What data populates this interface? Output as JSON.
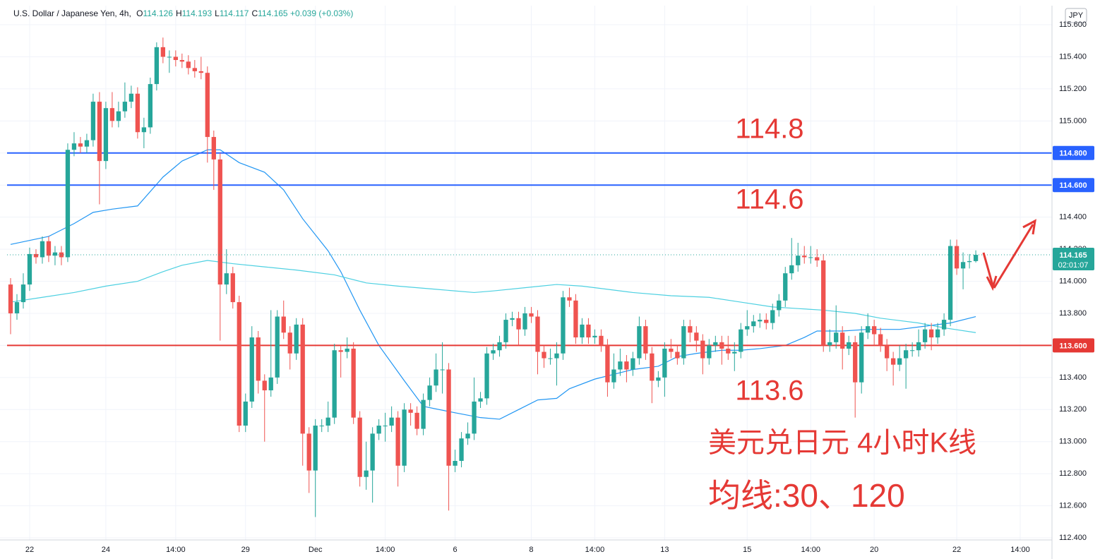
{
  "chart_data": {
    "type": "candlestick",
    "symbol": "U.S. Dollar / Japanese Yen, 4h,",
    "ohlc": [
      {
        "key": "O",
        "value": "114.126"
      },
      {
        "key": "H",
        "value": "114.193"
      },
      {
        "key": "L",
        "value": "114.117"
      },
      {
        "key": "C",
        "value": "114.165"
      }
    ],
    "change": "+0.039 (+0.03%)",
    "currency": "JPY",
    "up_color": "#26a69a",
    "down_color": "#ef5350",
    "open": [
      113.98,
      113.8,
      113.87,
      113.98,
      114.17,
      114.15,
      114.25,
      114.16,
      114.18,
      114.15,
      114.82,
      114.86,
      114.84,
      114.88,
      115.12,
      114.75,
      115.08,
      115.0,
      115.06,
      115.12,
      115.17,
      114.93,
      114.96,
      115.23,
      115.46,
      115.4,
      115.4,
      115.38,
      115.37,
      115.33,
      115.31,
      115.3,
      114.9,
      114.76,
      113.98,
      114.05,
      113.87,
      113.1,
      113.25,
      113.65,
      113.38,
      113.32,
      113.4,
      113.78,
      113.68,
      113.55,
      113.73,
      113.05,
      112.82,
      113.1,
      113.1,
      113.15,
      113.57,
      113.56,
      113.58,
      113.15,
      112.78,
      112.82,
      113.05,
      113.1,
      113.1,
      113.15,
      112.85,
      113.2,
      113.18,
      113.08,
      113.26,
      113.35,
      113.45,
      113.45,
      112.85,
      112.88,
      113.02,
      113.05,
      113.25,
      113.27,
      113.55,
      113.57,
      113.62,
      113.76,
      113.77,
      113.7,
      113.8,
      113.78,
      113.56,
      113.52,
      113.52,
      113.55,
      113.9,
      113.88,
      113.65,
      113.73,
      113.65,
      113.66,
      113.6,
      113.37,
      113.45,
      113.5,
      113.45,
      113.52,
      113.72,
      113.55,
      113.38,
      113.4,
      113.58,
      113.56,
      113.52,
      113.72,
      113.68,
      113.63,
      113.52,
      113.6,
      113.62,
      113.58,
      113.55,
      113.56,
      113.7,
      113.72,
      113.75,
      113.76,
      113.74,
      113.82,
      113.88,
      114.05,
      114.1,
      114.16,
      114.15,
      114.15,
      114.13,
      113.6,
      113.62,
      113.68,
      113.58,
      113.62,
      113.37,
      113.68,
      113.72,
      113.67,
      113.6,
      113.52,
      113.48,
      113.52,
      113.57,
      113.57,
      113.62,
      113.7,
      113.65,
      113.7,
      113.76,
      114.22,
      114.08,
      114.12,
      114.126
    ],
    "high": [
      114.02,
      113.92,
      114.05,
      114.21,
      114.2,
      114.28,
      114.28,
      114.22,
      114.22,
      114.86,
      114.93,
      114.9,
      114.92,
      115.17,
      115.18,
      115.12,
      115.18,
      115.12,
      115.24,
      115.22,
      115.21,
      115.02,
      115.27,
      115.49,
      115.52,
      115.44,
      115.44,
      115.42,
      115.41,
      115.38,
      115.4,
      115.34,
      114.94,
      114.8,
      114.2,
      114.09,
      113.91,
      113.3,
      113.72,
      113.69,
      113.42,
      113.82,
      113.82,
      113.88,
      113.72,
      113.77,
      113.77,
      113.09,
      113.14,
      113.14,
      113.25,
      113.61,
      113.6,
      113.65,
      113.62,
      113.19,
      113.0,
      113.09,
      113.14,
      113.18,
      113.22,
      113.19,
      113.24,
      113.24,
      113.22,
      113.3,
      113.4,
      113.55,
      113.62,
      113.49,
      112.95,
      113.06,
      113.12,
      113.4,
      113.31,
      113.59,
      113.61,
      113.66,
      113.8,
      113.81,
      113.81,
      113.84,
      113.84,
      113.82,
      113.6,
      113.58,
      113.62,
      113.94,
      113.96,
      113.92,
      113.77,
      113.77,
      113.7,
      113.7,
      113.64,
      113.55,
      113.58,
      113.54,
      113.56,
      113.78,
      113.76,
      113.59,
      113.44,
      113.62,
      113.64,
      113.6,
      113.76,
      113.76,
      113.72,
      113.67,
      113.64,
      113.66,
      113.66,
      113.66,
      113.62,
      113.74,
      113.82,
      113.79,
      113.8,
      113.8,
      113.86,
      113.92,
      114.09,
      114.27,
      114.24,
      114.22,
      114.22,
      114.2,
      114.17,
      113.7,
      113.85,
      113.72,
      113.66,
      113.66,
      113.72,
      113.8,
      113.76,
      113.71,
      113.64,
      113.56,
      113.6,
      113.61,
      113.62,
      113.7,
      113.74,
      113.74,
      113.74,
      113.8,
      114.26,
      114.26,
      114.18,
      114.17,
      114.193
    ],
    "low": [
      113.67,
      113.76,
      113.83,
      113.94,
      114.11,
      114.11,
      114.12,
      114.1,
      114.1,
      114.12,
      114.78,
      114.8,
      114.8,
      114.84,
      114.48,
      114.7,
      114.96,
      114.96,
      115.02,
      115.08,
      114.89,
      114.83,
      114.92,
      115.19,
      115.36,
      115.3,
      115.34,
      115.33,
      115.29,
      115.27,
      115.26,
      114.74,
      114.57,
      113.63,
      113.92,
      113.83,
      113.06,
      113.06,
      113.21,
      113.3,
      113.0,
      113.28,
      113.36,
      113.64,
      113.45,
      113.51,
      112.85,
      112.68,
      112.53,
      113.06,
      113.06,
      113.11,
      113.4,
      113.52,
      113.11,
      112.72,
      112.7,
      112.62,
      113.01,
      113.0,
      113.06,
      112.72,
      112.81,
      113.1,
      113.04,
      113.04,
      113.22,
      113.31,
      113.3,
      112.57,
      112.81,
      112.84,
      112.98,
      113.01,
      113.21,
      113.23,
      113.51,
      113.53,
      113.58,
      113.72,
      113.6,
      113.66,
      113.74,
      113.42,
      113.46,
      113.48,
      113.35,
      113.51,
      113.84,
      113.61,
      113.61,
      113.61,
      113.61,
      113.56,
      113.28,
      113.33,
      113.41,
      113.37,
      113.41,
      113.48,
      113.51,
      113.24,
      113.34,
      113.28,
      113.52,
      113.48,
      113.48,
      113.62,
      113.56,
      113.42,
      113.48,
      113.56,
      113.48,
      113.51,
      113.44,
      113.52,
      113.66,
      113.68,
      113.71,
      113.7,
      113.7,
      113.78,
      113.84,
      114.01,
      114.06,
      114.11,
      114.11,
      114.09,
      113.56,
      113.56,
      113.58,
      113.45,
      113.54,
      113.15,
      113.3,
      113.64,
      113.6,
      113.56,
      113.44,
      113.35,
      113.44,
      113.33,
      113.53,
      113.53,
      113.58,
      113.57,
      113.61,
      113.66,
      113.72,
      114.04,
      113.95,
      114.08,
      114.117
    ],
    "close": [
      113.8,
      113.87,
      113.98,
      114.17,
      114.15,
      114.25,
      114.16,
      114.18,
      114.15,
      114.82,
      114.86,
      114.84,
      114.88,
      115.12,
      114.75,
      115.08,
      115.0,
      115.06,
      115.12,
      115.17,
      114.93,
      114.96,
      115.23,
      115.46,
      115.4,
      115.4,
      115.38,
      115.37,
      115.33,
      115.31,
      115.3,
      114.9,
      114.76,
      113.98,
      114.05,
      113.87,
      113.1,
      113.25,
      113.65,
      113.38,
      113.32,
      113.4,
      113.78,
      113.68,
      113.55,
      113.73,
      113.05,
      112.82,
      113.1,
      113.1,
      113.15,
      113.57,
      113.56,
      113.58,
      113.15,
      112.78,
      112.82,
      113.05,
      113.1,
      113.1,
      113.15,
      112.85,
      113.2,
      113.18,
      113.08,
      113.26,
      113.35,
      113.45,
      113.45,
      112.85,
      112.88,
      113.02,
      113.05,
      113.25,
      113.27,
      113.55,
      113.57,
      113.62,
      113.76,
      113.77,
      113.7,
      113.8,
      113.78,
      113.56,
      113.52,
      113.52,
      113.55,
      113.9,
      113.88,
      113.65,
      113.73,
      113.65,
      113.66,
      113.6,
      113.37,
      113.45,
      113.5,
      113.45,
      113.52,
      113.72,
      113.55,
      113.38,
      113.4,
      113.58,
      113.56,
      113.52,
      113.72,
      113.68,
      113.63,
      113.52,
      113.6,
      113.62,
      113.58,
      113.55,
      113.56,
      113.7,
      113.72,
      113.75,
      113.76,
      113.74,
      113.82,
      113.88,
      114.05,
      114.1,
      114.16,
      114.15,
      114.15,
      114.13,
      113.6,
      113.62,
      113.68,
      113.58,
      113.62,
      113.37,
      113.68,
      113.72,
      113.67,
      113.6,
      113.52,
      113.48,
      113.52,
      113.57,
      113.57,
      113.62,
      113.7,
      113.65,
      113.7,
      113.76,
      114.22,
      114.08,
      114.12,
      114.126,
      114.165
    ],
    "moving_averages": [
      {
        "color": "#2196f3",
        "x": [
          0,
          6,
          7,
          10,
          13,
          16,
          20,
          24,
          27,
          31,
          33,
          36,
          40,
          43,
          46,
          50,
          52,
          55,
          58,
          62,
          65,
          70,
          74,
          77,
          80,
          83,
          86,
          88,
          92,
          95,
          98,
          102,
          105,
          108,
          112,
          115,
          118,
          122,
          125,
          127,
          131,
          135,
          140,
          144,
          148,
          152
        ],
        "values": [
          114.23,
          114.28,
          114.3,
          114.36,
          114.43,
          114.45,
          114.47,
          114.65,
          114.75,
          114.82,
          114.82,
          114.74,
          114.68,
          114.57,
          114.39,
          114.19,
          114.06,
          113.82,
          113.6,
          113.38,
          113.22,
          113.18,
          113.15,
          113.14,
          113.2,
          113.26,
          113.27,
          113.33,
          113.39,
          113.42,
          113.45,
          113.47,
          113.53,
          113.55,
          113.57,
          113.57,
          113.58,
          113.6,
          113.65,
          113.69,
          113.69,
          113.7,
          113.7,
          113.72,
          113.74,
          113.78
        ]
      },
      {
        "color": "#4dd0e1",
        "x": [
          0,
          5,
          10,
          15,
          20,
          24,
          27,
          31,
          35,
          40,
          45,
          51,
          56,
          61,
          67,
          73,
          76,
          81,
          86,
          90,
          94,
          98,
          104,
          110,
          115,
          120,
          124,
          128,
          133,
          137,
          143,
          147,
          152
        ],
        "values": [
          113.87,
          113.9,
          113.93,
          113.97,
          114.0,
          114.06,
          114.1,
          114.13,
          114.11,
          114.09,
          114.07,
          114.04,
          113.99,
          113.97,
          113.95,
          113.93,
          113.94,
          113.96,
          113.98,
          113.97,
          113.95,
          113.93,
          113.91,
          113.9,
          113.87,
          113.84,
          113.83,
          113.82,
          113.8,
          113.77,
          113.74,
          113.71,
          113.68
        ]
      }
    ],
    "levels": [
      {
        "value": 114.8,
        "label": "114.800",
        "color": "#2962ff"
      },
      {
        "value": 114.6,
        "label": "114.600",
        "color": "#2962ff"
      },
      {
        "value": 113.6,
        "label": "113.600",
        "color": "#e53935"
      }
    ],
    "last": {
      "value": 114.165,
      "label": "114.165",
      "countdown": "02:01:07"
    },
    "annotations": [
      "114.8",
      "114.6",
      "113.6",
      "美元兑日元 4小时K线",
      "均线:30、120"
    ],
    "xlim": [
      -0.5,
      164
    ],
    "xticks": [
      {
        "value": 3,
        "label": "22"
      },
      {
        "value": 15,
        "label": "24"
      },
      {
        "value": 26,
        "label": "14:00"
      },
      {
        "value": 37,
        "label": "29"
      },
      {
        "value": 48,
        "label": "Dec"
      },
      {
        "value": 59,
        "label": "14:00"
      },
      {
        "value": 70,
        "label": "6"
      },
      {
        "value": 82,
        "label": "8"
      },
      {
        "value": 92,
        "label": "14:00"
      },
      {
        "value": 103,
        "label": "13"
      },
      {
        "value": 116,
        "label": "15"
      },
      {
        "value": 126,
        "label": "14:00"
      },
      {
        "value": 136,
        "label": "20"
      },
      {
        "value": 149,
        "label": "22"
      },
      {
        "value": 159,
        "label": "14:00"
      }
    ],
    "ylim": [
      112.387,
      115.719
    ],
    "yticks": [
      {
        "value": 112.4,
        "label": "112.400"
      },
      {
        "value": 112.6,
        "label": "112.600"
      },
      {
        "value": 112.8,
        "label": "112.800"
      },
      {
        "value": 113.0,
        "label": "113.000"
      },
      {
        "value": 113.2,
        "label": "113.200"
      },
      {
        "value": 113.4,
        "label": "113.400"
      },
      {
        "value": 113.6,
        "label": "113.600"
      },
      {
        "value": 113.8,
        "label": "113.800"
      },
      {
        "value": 114.0,
        "label": "114.000"
      },
      {
        "value": 114.2,
        "label": "114.200"
      },
      {
        "value": 114.4,
        "label": "114.400"
      },
      {
        "value": 114.6,
        "label": "114.600"
      },
      {
        "value": 114.8,
        "label": "114.800"
      },
      {
        "value": 115.0,
        "label": "115.000"
      },
      {
        "value": 115.2,
        "label": "115.200"
      },
      {
        "value": 115.4,
        "label": "115.400"
      },
      {
        "value": 115.6,
        "label": "115.600"
      }
    ],
    "grid": true
  }
}
